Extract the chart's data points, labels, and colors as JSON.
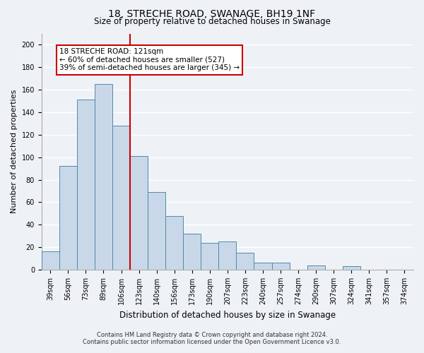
{
  "title": "18, STRECHE ROAD, SWANAGE, BH19 1NF",
  "subtitle": "Size of property relative to detached houses in Swanage",
  "xlabel": "Distribution of detached houses by size in Swanage",
  "ylabel": "Number of detached properties",
  "bar_labels": [
    "39sqm",
    "56sqm",
    "73sqm",
    "89sqm",
    "106sqm",
    "123sqm",
    "140sqm",
    "156sqm",
    "173sqm",
    "190sqm",
    "207sqm",
    "223sqm",
    "240sqm",
    "257sqm",
    "274sqm",
    "290sqm",
    "307sqm",
    "324sqm",
    "341sqm",
    "357sqm",
    "374sqm"
  ],
  "bar_values": [
    16,
    92,
    151,
    165,
    128,
    101,
    69,
    48,
    32,
    24,
    25,
    15,
    6,
    6,
    0,
    4,
    0,
    3,
    0,
    0,
    0
  ],
  "bar_color": "#c8d8e8",
  "bar_edge_color": "#5588aa",
  "vline_color": "#cc0000",
  "vline_bar_index": 5,
  "annotation_title": "18 STRECHE ROAD: 121sqm",
  "annotation_line1": "← 60% of detached houses are smaller (527)",
  "annotation_line2": "39% of semi-detached houses are larger (345) →",
  "annotation_box_color": "#ffffff",
  "annotation_box_edge": "#cc0000",
  "ylim": [
    0,
    210
  ],
  "yticks": [
    0,
    20,
    40,
    60,
    80,
    100,
    120,
    140,
    160,
    180,
    200
  ],
  "footer1": "Contains HM Land Registry data © Crown copyright and database right 2024.",
  "footer2": "Contains public sector information licensed under the Open Government Licence v3.0.",
  "bg_color": "#eef2f7",
  "grid_color": "#ffffff",
  "title_fontsize": 10,
  "subtitle_fontsize": 8.5,
  "ylabel_fontsize": 8,
  "xlabel_fontsize": 8.5,
  "tick_fontsize": 7,
  "footer_fontsize": 6,
  "annotation_fontsize": 7.5
}
